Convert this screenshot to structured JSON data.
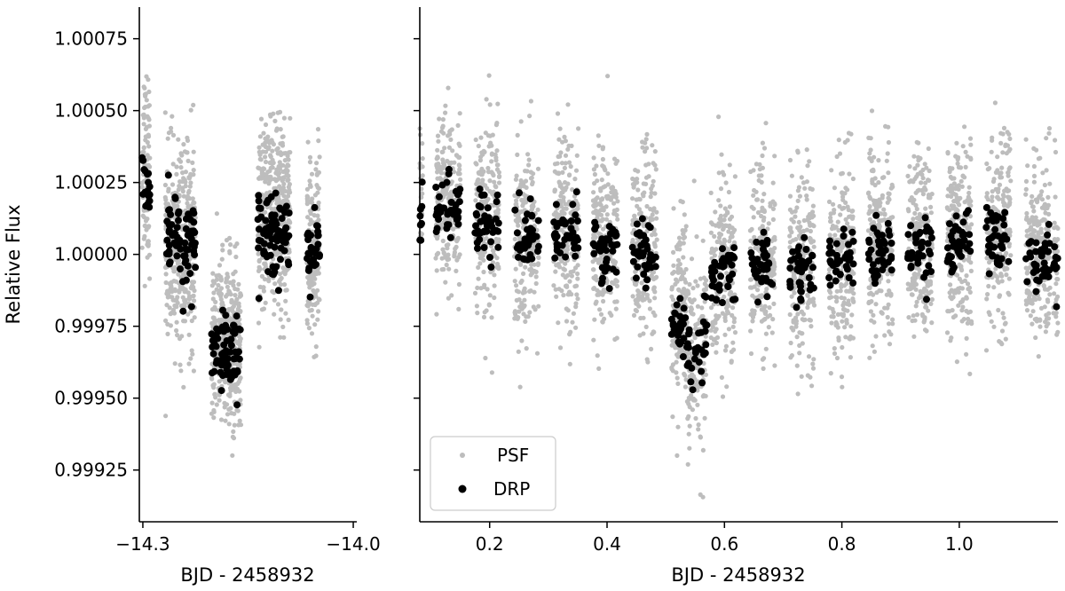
{
  "chart_data": [
    {
      "type": "scatter",
      "panel": "left",
      "xlabel": "BJD - 2458932",
      "ylabel": "Relative Flux",
      "xlim": [
        -14.305,
        -13.995
      ],
      "ylim": [
        0.99907,
        1.00086
      ],
      "xticks": [
        -14.3,
        -14.0
      ],
      "xtick_labels": [
        "−14.3",
        "−14.0"
      ],
      "yticks": [
        0.99925,
        0.9995,
        0.99975,
        1.0,
        1.00025,
        1.0005,
        1.00075
      ],
      "ytick_labels": [
        "0.99925",
        "0.99950",
        "0.99975",
        "1.00000",
        "1.00025",
        "1.00050",
        "1.00075"
      ],
      "grid": false,
      "psf_color": "#bdbdbd",
      "drp_color": "#000000",
      "orbits": [
        {
          "x0": -14.301,
          "x1": -14.29,
          "psf_mean": 1.0003,
          "drp_mean": 1.00023,
          "psf_sd": 0.00017,
          "drp_sd": 5e-05
        },
        {
          "x0": -14.268,
          "x1": -14.225,
          "psf_mean": 1.00003,
          "drp_mean": 1.00003,
          "psf_sd": 0.00017,
          "drp_sd": 8e-05
        },
        {
          "x0": -14.202,
          "x1": -14.16,
          "psf_mean": 0.9997,
          "drp_mean": 0.99966,
          "psf_sd": 0.00014,
          "drp_sd": 7e-05
        },
        {
          "x0": -14.136,
          "x1": -14.09,
          "psf_mean": 1.00013,
          "drp_mean": 1.00008,
          "psf_sd": 0.00016,
          "drp_sd": 7e-05
        },
        {
          "x0": -14.066,
          "x1": -14.048,
          "psf_mean": 1.00002,
          "drp_mean": 1.0,
          "psf_sd": 0.00016,
          "drp_sd": 6e-05
        }
      ]
    },
    {
      "type": "scatter",
      "panel": "right",
      "xlabel": "BJD - 2458932",
      "ylabel": "",
      "xlim": [
        0.081,
        1.168
      ],
      "ylim": [
        0.99907,
        1.00086
      ],
      "xticks": [
        0.2,
        0.4,
        0.6,
        0.8,
        1.0
      ],
      "xtick_labels": [
        "0.2",
        "0.4",
        "0.6",
        "0.8",
        "1.0"
      ],
      "yticks": [
        0.99925,
        0.9995,
        0.99975,
        1.0,
        1.00025,
        1.0005,
        1.00075
      ],
      "grid": false,
      "legend": {
        "position": "lower-left",
        "entries": [
          {
            "label": "PSF",
            "color": "#bdbdbd",
            "marker": "small-dot"
          },
          {
            "label": "DRP",
            "color": "#000000",
            "marker": "dot"
          }
        ]
      },
      "psf_color": "#bdbdbd",
      "drp_color": "#000000",
      "transit": {
        "x0": 0.535,
        "x1": 0.565,
        "depth_mean": 0.99965
      },
      "orbits": [
        {
          "x0": 0.081,
          "x1": 0.086,
          "psf_mean": 1.00015,
          "drp_mean": 1.00012
        },
        {
          "x0": 0.108,
          "x1": 0.15,
          "psf_mean": 1.00018,
          "drp_mean": 1.00015
        },
        {
          "x0": 0.175,
          "x1": 0.217,
          "psf_mean": 1.00012,
          "drp_mean": 1.0001
        },
        {
          "x0": 0.242,
          "x1": 0.284,
          "psf_mean": 1.00008,
          "drp_mean": 1.00005
        },
        {
          "x0": 0.309,
          "x1": 0.351,
          "psf_mean": 1.0001,
          "drp_mean": 1.00006
        },
        {
          "x0": 0.376,
          "x1": 0.418,
          "psf_mean": 1.00005,
          "drp_mean": 1.00002
        },
        {
          "x0": 0.443,
          "x1": 0.485,
          "psf_mean": 1.00002,
          "drp_mean": 1.0
        },
        {
          "x0": 0.51,
          "x1": 0.57,
          "psf_mean": 0.9998,
          "drp_mean": 0.99975
        },
        {
          "x0": 0.577,
          "x1": 0.619,
          "psf_mean": 0.99995,
          "drp_mean": 0.99993
        },
        {
          "x0": 0.644,
          "x1": 0.686,
          "psf_mean": 0.99998,
          "drp_mean": 0.99996
        },
        {
          "x0": 0.711,
          "x1": 0.753,
          "psf_mean": 0.99995,
          "drp_mean": 0.99995
        },
        {
          "x0": 0.778,
          "x1": 0.82,
          "psf_mean": 0.99998,
          "drp_mean": 0.99997
        },
        {
          "x0": 0.845,
          "x1": 0.887,
          "psf_mean": 1.00005,
          "drp_mean": 1.00002
        },
        {
          "x0": 0.912,
          "x1": 0.954,
          "psf_mean": 1.00003,
          "drp_mean": 1.00002
        },
        {
          "x0": 0.979,
          "x1": 1.021,
          "psf_mean": 1.00005,
          "drp_mean": 1.00003
        },
        {
          "x0": 1.046,
          "x1": 1.088,
          "psf_mean": 1.00008,
          "drp_mean": 1.00005
        },
        {
          "x0": 1.113,
          "x1": 1.155,
          "psf_mean": 1.00002,
          "drp_mean": 1.0
        },
        {
          "x0": 1.16,
          "x1": 1.168,
          "psf_mean": 1.0,
          "drp_mean": 0.99998
        }
      ]
    }
  ]
}
